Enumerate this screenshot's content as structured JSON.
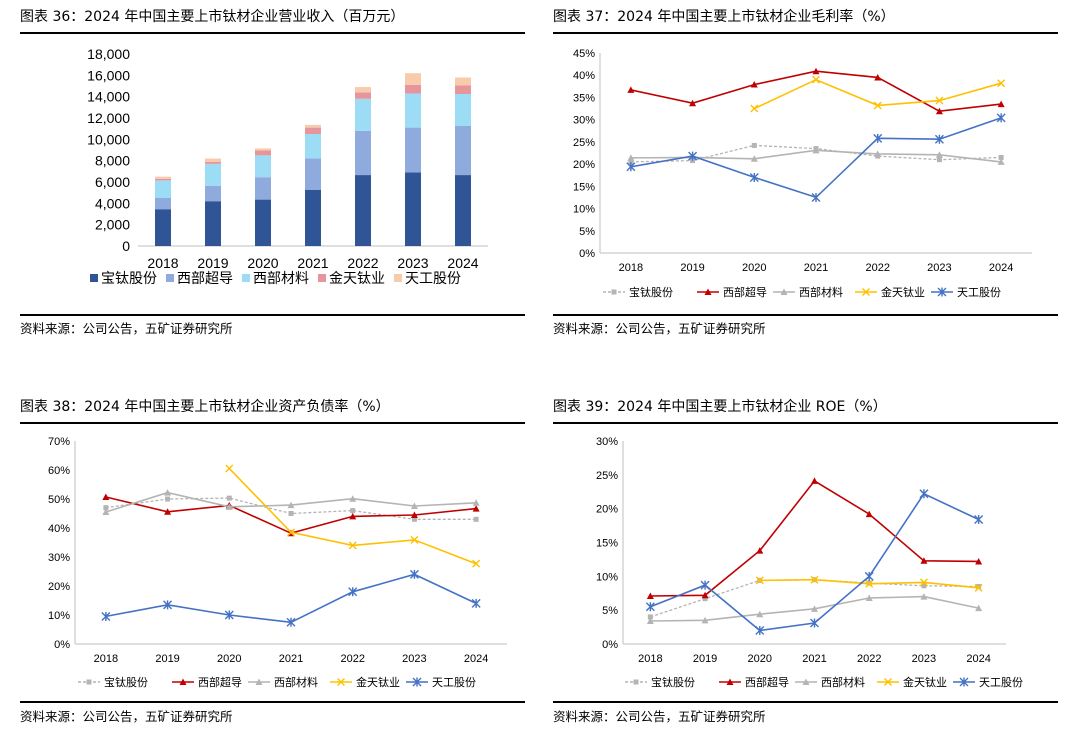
{
  "panels": [
    {
      "title": "图表 36：2024 年中国主要上市钛材企业营业收入（百万元）",
      "source": "资料来源：公司公告，五矿证券研究所"
    },
    {
      "title": "图表 37：2024 年中国主要上市钛材企业毛利率（%）",
      "source": "资料来源：公司公告，五矿证券研究所"
    },
    {
      "title": "图表 38：2024 年中国主要上市钛材企业资产负债率（%）",
      "source": "资料来源：公司公告，五矿证券研究所"
    },
    {
      "title": "图表 39：2024 年中国主要上市钛材企业 ROE（%）",
      "source": "资料来源：公司公告，五矿证券研究所"
    }
  ],
  "colors": {
    "宝钛股份_bar": "#2f5597",
    "西部超导_bar": "#8faadc",
    "西部材料_bar": "#9ddcf5",
    "金天钛业_bar": "#e6959a",
    "天工股份_bar": "#f8cbad",
    "宝钛股份_line": "#b4b4b4",
    "西部超导_line": "#c00000",
    "西部材料_line": "#b4b4b4",
    "金天钛业_line": "#ffc000",
    "天工股份_line": "#4472c4"
  },
  "chart_data": [
    {
      "type": "bar",
      "stacked": true,
      "categories": [
        "2018",
        "2019",
        "2020",
        "2021",
        "2022",
        "2023",
        "2024"
      ],
      "ylim": [
        0,
        18000
      ],
      "yticks": [
        "0",
        "2,000",
        "4,000",
        "6,000",
        "8,000",
        "10,000",
        "12,000",
        "14,000",
        "16,000",
        "18,000"
      ],
      "legend_position": "bottom",
      "series": [
        {
          "name": "宝钛股份",
          "values": [
            3450,
            4200,
            4350,
            5250,
            6650,
            6900,
            6650
          ]
        },
        {
          "name": "西部超导",
          "values": [
            1050,
            1450,
            2100,
            2950,
            4150,
            4200,
            4600
          ]
        },
        {
          "name": "西部材料",
          "values": [
            1650,
            2050,
            2050,
            2300,
            3000,
            3200,
            3000
          ]
        },
        {
          "name": "金天钛业",
          "values": [
            150,
            200,
            450,
            600,
            600,
            800,
            800
          ]
        },
        {
          "name": "天工股份",
          "values": [
            200,
            300,
            200,
            250,
            500,
            1100,
            750
          ]
        }
      ]
    },
    {
      "type": "line",
      "categories": [
        "2018",
        "2019",
        "2020",
        "2021",
        "2022",
        "2023",
        "2024"
      ],
      "ylim": [
        0,
        45
      ],
      "yticks": [
        "0%",
        "5%",
        "10%",
        "15%",
        "20%",
        "25%",
        "30%",
        "35%",
        "40%",
        "45%"
      ],
      "legend_position": "bottom",
      "series": [
        {
          "name": "宝钛股份",
          "values": [
            20.5,
            20.8,
            24.2,
            23.5,
            21.8,
            21.0,
            21.5
          ]
        },
        {
          "name": "西部超导",
          "values": [
            36.7,
            33.7,
            37.9,
            40.9,
            39.5,
            31.9,
            33.5
          ]
        },
        {
          "name": "西部材料",
          "values": [
            21.4,
            21.5,
            21.2,
            23.1,
            22.3,
            22.1,
            20.5
          ]
        },
        {
          "name": "金天钛业",
          "values": [
            null,
            null,
            32.5,
            39.0,
            33.2,
            34.3,
            38.2
          ]
        },
        {
          "name": "天工股份",
          "values": [
            19.4,
            21.8,
            17.0,
            12.5,
            25.8,
            25.6,
            30.4
          ]
        }
      ]
    },
    {
      "type": "line",
      "categories": [
        "2018",
        "2019",
        "2020",
        "2021",
        "2022",
        "2023",
        "2024"
      ],
      "ylim": [
        0,
        70
      ],
      "yticks": [
        "0%",
        "10%",
        "20%",
        "30%",
        "40%",
        "50%",
        "60%",
        "70%"
      ],
      "legend_position": "bottom",
      "series": [
        {
          "name": "宝钛股份",
          "values": [
            47.0,
            50.0,
            50.3,
            45.0,
            46.0,
            43.0,
            43.0
          ]
        },
        {
          "name": "西部超导",
          "values": [
            50.7,
            45.6,
            47.8,
            38.2,
            44.0,
            44.5,
            46.7
          ]
        },
        {
          "name": "西部材料",
          "values": [
            45.5,
            52.2,
            47.3,
            47.9,
            50.1,
            47.6,
            48.7
          ]
        },
        {
          "name": "金天钛业",
          "values": [
            null,
            null,
            60.5,
            38.5,
            34.0,
            35.9,
            27.7
          ]
        },
        {
          "name": "天工股份",
          "values": [
            9.5,
            13.5,
            10.0,
            7.5,
            18.0,
            24.0,
            14.0
          ]
        }
      ]
    },
    {
      "type": "line",
      "categories": [
        "2018",
        "2019",
        "2020",
        "2021",
        "2022",
        "2023",
        "2024"
      ],
      "ylim": [
        0,
        30
      ],
      "yticks": [
        "0%",
        "5%",
        "10%",
        "15%",
        "20%",
        "25%",
        "30%"
      ],
      "legend_position": "bottom",
      "series": [
        {
          "name": "宝钛股份",
          "values": [
            4.0,
            6.7,
            9.4,
            9.5,
            9.0,
            8.6,
            8.5
          ]
        },
        {
          "name": "西部超导",
          "values": [
            7.1,
            7.2,
            13.8,
            24.1,
            19.2,
            12.3,
            12.2
          ]
        },
        {
          "name": "西部材料",
          "values": [
            3.4,
            3.5,
            4.4,
            5.2,
            6.8,
            7.0,
            5.3
          ]
        },
        {
          "name": "金天钛业",
          "values": [
            null,
            null,
            9.4,
            9.5,
            8.9,
            9.1,
            8.3
          ]
        },
        {
          "name": "天工股份",
          "values": [
            5.5,
            8.7,
            2.0,
            3.1,
            10.0,
            22.2,
            18.4
          ]
        }
      ]
    }
  ]
}
